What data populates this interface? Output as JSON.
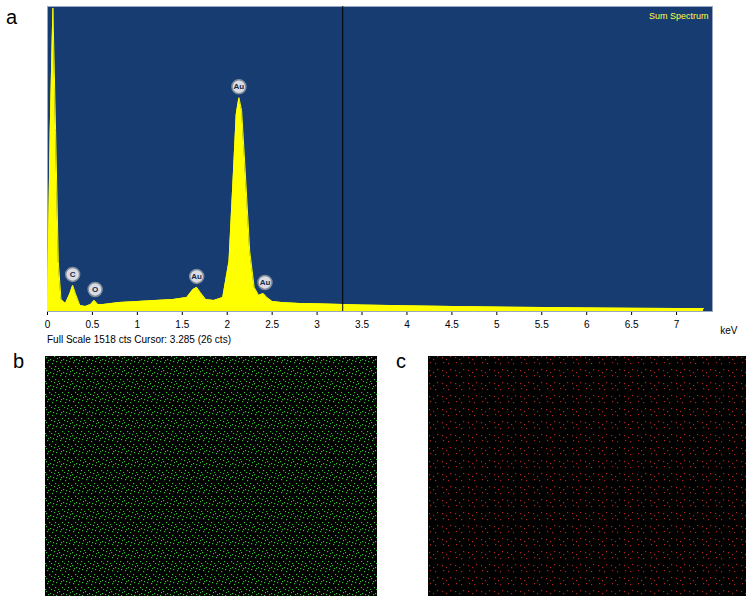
{
  "chart_data": [
    {
      "type": "area",
      "panel": "a",
      "title": "Sum Spectrum",
      "x_label": "keV",
      "caption": "Full Scale 1518 cts Cursor: 3.285 (26 cts)",
      "color": "#ffff00",
      "tick_labels": "x",
      "x": [
        0,
        0.03,
        0.06,
        0.09,
        0.12,
        0.15,
        0.2,
        0.25,
        0.28,
        0.31,
        0.36,
        0.42,
        0.48,
        0.52,
        0.56,
        0.62,
        0.8,
        1.0,
        1.2,
        1.4,
        1.55,
        1.62,
        1.66,
        1.7,
        1.76,
        1.85,
        1.95,
        2.02,
        2.07,
        2.1,
        2.13,
        2.16,
        2.2,
        2.25,
        2.3,
        2.35,
        2.4,
        2.44,
        2.5,
        2.6,
        2.8,
        3.0,
        3.5,
        4.0,
        4.5,
        5.0,
        5.5,
        6.0,
        6.5,
        7.0,
        7.3
      ],
      "values": [
        0,
        900,
        1510,
        900,
        250,
        60,
        40,
        90,
        130,
        90,
        30,
        25,
        35,
        55,
        35,
        35,
        45,
        50,
        55,
        60,
        70,
        110,
        120,
        95,
        60,
        55,
        70,
        250,
        700,
        980,
        1064,
        1000,
        700,
        300,
        120,
        80,
        90,
        70,
        50,
        45,
        40,
        38,
        32,
        28,
        25,
        22,
        20,
        18,
        16,
        15,
        15
      ],
      "peaks": [
        {
          "x": 0.28,
          "y": 130,
          "label": "C"
        },
        {
          "x": 0.53,
          "y": 55,
          "label": "O"
        },
        {
          "x": 1.66,
          "y": 120,
          "label": "Au"
        },
        {
          "x": 2.13,
          "y": 1064,
          "label": "Au"
        },
        {
          "x": 2.42,
          "y": 90,
          "label": "Au"
        }
      ],
      "cursor": 3.285,
      "xlim": [
        0,
        7.4
      ],
      "xticks": [
        0,
        0.5,
        1,
        1.5,
        2,
        2.5,
        3,
        3.5,
        4,
        4.5,
        5,
        5.5,
        6,
        6.5,
        7
      ],
      "ylim": [
        0,
        1518
      ]
    },
    {
      "type": "image",
      "panel": "b",
      "color": "#2fbf2f"
    },
    {
      "type": "image",
      "panel": "c",
      "color": "#b3261e"
    }
  ]
}
